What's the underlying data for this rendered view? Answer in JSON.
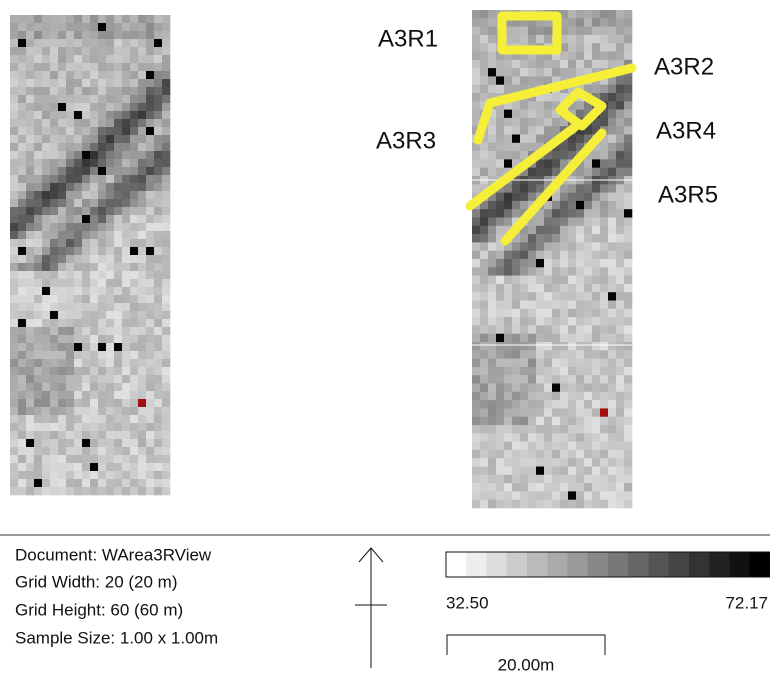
{
  "annotations": {
    "labels": [
      "A3R1",
      "A3R2",
      "A3R3",
      "A3R4",
      "A3R5"
    ]
  },
  "info": {
    "lines": [
      "Document: WArea3RView",
      "Grid Width: 20 (20 m)",
      "Grid Height: 60 (60 m)",
      "Sample Size: 1.00 x 1.00m"
    ]
  },
  "color_scale": {
    "min_label": "32.50",
    "max_label": "72.17"
  },
  "scale_bar": {
    "label": "20.00m"
  }
}
